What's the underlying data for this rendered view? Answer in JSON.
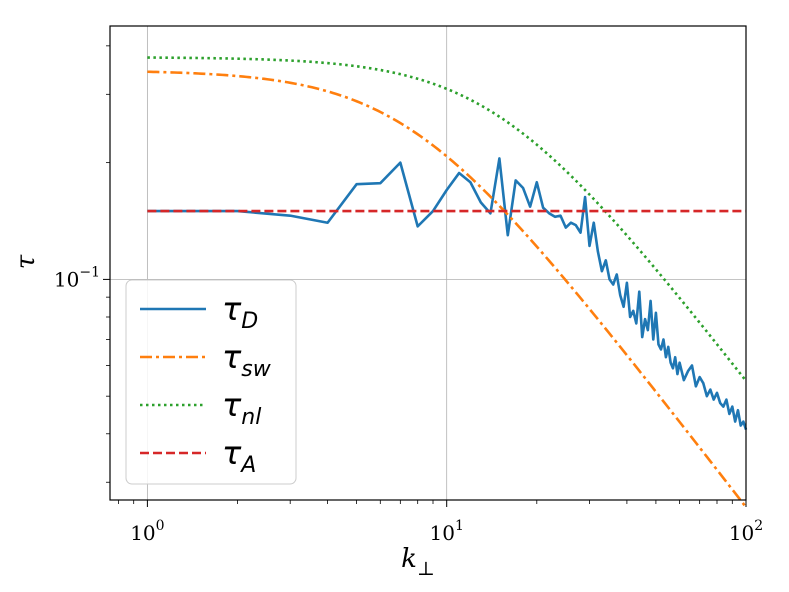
{
  "chart_data": {
    "type": "line",
    "title": "",
    "xscale": "log",
    "yscale": "log",
    "xlim": [
      0.75,
      100
    ],
    "ylim": [
      0.027,
      0.45
    ],
    "grid": true,
    "legend_position": "lower-left",
    "xlabel": {
      "base": "k",
      "sub": "⊥"
    },
    "ylabel": "τ",
    "x_ticks": [
      {
        "value": 1,
        "base": "10",
        "exp": "0"
      },
      {
        "value": 10,
        "base": "10",
        "exp": "1"
      },
      {
        "value": 100,
        "base": "10",
        "exp": "2"
      }
    ],
    "y_ticks": [
      {
        "value": 0.1,
        "base": "10",
        "exp": "−1"
      }
    ],
    "series": [
      {
        "name": "τ_D",
        "legend_base": "τ",
        "legend_sub": "D",
        "color": "#1f77b4",
        "dash": "solid",
        "points": [
          [
            1,
            0.15
          ],
          [
            2,
            0.15
          ],
          [
            3,
            0.146
          ],
          [
            4,
            0.14
          ],
          [
            5,
            0.176
          ],
          [
            6,
            0.177
          ],
          [
            7,
            0.2
          ],
          [
            8,
            0.137
          ],
          [
            9,
            0.15
          ],
          [
            10,
            0.17
          ],
          [
            11,
            0.188
          ],
          [
            12,
            0.178
          ],
          [
            13,
            0.158
          ],
          [
            14,
            0.148
          ],
          [
            15,
            0.205
          ],
          [
            16,
            0.13
          ],
          [
            17,
            0.18
          ],
          [
            18,
            0.172
          ],
          [
            19,
            0.154
          ],
          [
            20,
            0.178
          ],
          [
            21,
            0.153
          ],
          [
            22,
            0.148
          ],
          [
            23,
            0.145
          ],
          [
            24,
            0.146
          ],
          [
            25,
            0.136
          ],
          [
            26,
            0.14
          ],
          [
            27,
            0.138
          ],
          [
            28,
            0.132
          ],
          [
            29,
            0.163
          ],
          [
            30,
            0.122
          ],
          [
            31,
            0.14
          ],
          [
            32,
            0.118
          ],
          [
            33,
            0.105
          ],
          [
            34,
            0.112
          ],
          [
            35,
            0.1
          ],
          [
            36,
            0.097
          ],
          [
            37,
            0.103
          ],
          [
            38,
            0.091
          ],
          [
            39,
            0.085
          ],
          [
            40,
            0.098
          ],
          [
            41,
            0.08
          ],
          [
            42,
            0.083
          ],
          [
            43,
            0.077
          ],
          [
            44,
            0.093
          ],
          [
            45,
            0.071
          ],
          [
            46,
            0.079
          ],
          [
            47,
            0.074
          ],
          [
            48,
            0.088
          ],
          [
            49,
            0.07
          ],
          [
            50,
            0.082
          ],
          [
            51,
            0.068
          ],
          [
            52,
            0.066
          ],
          [
            53,
            0.07
          ],
          [
            54,
            0.063
          ],
          [
            55,
            0.067
          ],
          [
            56,
            0.061
          ],
          [
            57,
            0.059
          ],
          [
            58,
            0.063
          ],
          [
            59,
            0.057
          ],
          [
            60,
            0.061
          ],
          [
            62,
            0.055
          ],
          [
            64,
            0.058
          ],
          [
            66,
            0.06
          ],
          [
            68,
            0.053
          ],
          [
            70,
            0.056
          ],
          [
            72,
            0.054
          ],
          [
            74,
            0.05
          ],
          [
            76,
            0.052
          ],
          [
            78,
            0.049
          ],
          [
            80,
            0.051
          ],
          [
            82,
            0.048
          ],
          [
            84,
            0.047
          ],
          [
            86,
            0.049
          ],
          [
            88,
            0.045
          ],
          [
            90,
            0.047
          ],
          [
            92,
            0.043
          ],
          [
            94,
            0.046
          ],
          [
            96,
            0.042
          ],
          [
            98,
            0.043
          ],
          [
            100,
            0.041
          ]
        ]
      },
      {
        "name": "τ_sw",
        "legend_base": "τ",
        "legend_sub": "sw",
        "color": "#ff7f0e",
        "dash": "dashdot",
        "model": {
          "kind": "rollover",
          "amplitude": 0.346,
          "knee": 7.5,
          "slope": -1
        }
      },
      {
        "name": "τ_nl",
        "legend_base": "τ",
        "legend_sub": "nl",
        "color": "#2ca02c",
        "dash": "dotted",
        "model": {
          "kind": "rollover",
          "amplitude": 0.374,
          "knee": 14.8,
          "slope": -1
        }
      },
      {
        "name": "τ_A",
        "legend_base": "τ",
        "legend_sub": "A",
        "color": "#d62728",
        "dash": "dashed",
        "model": {
          "kind": "constant",
          "value": 0.15
        }
      }
    ]
  }
}
